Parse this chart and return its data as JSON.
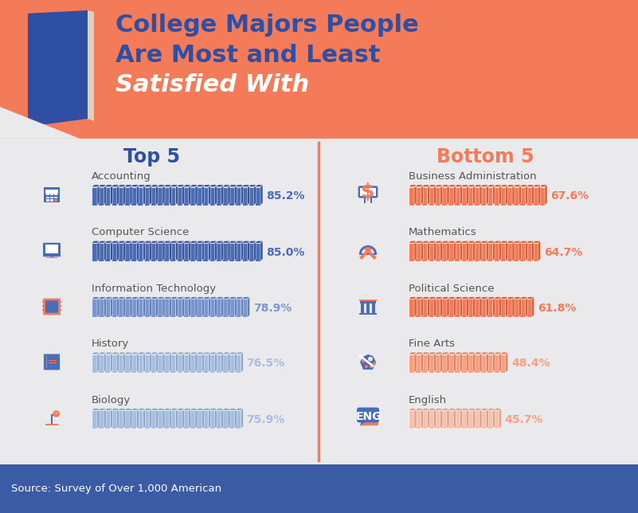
{
  "title_line1": "College Majors People",
  "title_line2": "Are Most and Least",
  "title_line3": "Satisfied With",
  "header_bg": "#F47B5A",
  "body_bg": "#EAEAED",
  "footer_bg": "#3B5BA5",
  "divider_color": "#F47B5A",
  "top5_label": "Top 5",
  "bottom5_label": "Bottom 5",
  "top5_dark_color": "#4B6CB7",
  "top5_dark_side": "#3A5494",
  "top5_mid_color": "#7B96CE",
  "top5_mid_side": "#6080B8",
  "top5_light_color": "#A8BEE0",
  "top5_light_side": "#8EA8CC",
  "bottom5_dark_color": "#F47B5A",
  "bottom5_dark_side": "#D4603A",
  "bottom5_mid_color": "#F7A080",
  "bottom5_mid_side": "#E08060",
  "bottom5_light_color": "#F9C0AA",
  "bottom5_light_side": "#E0A090",
  "top5_majors": [
    "Accounting",
    "Computer Science",
    "Information Technology",
    "History",
    "Biology"
  ],
  "top5_values": [
    85.2,
    85.0,
    78.9,
    76.5,
    75.9
  ],
  "top5_pct_colors": [
    "#4B6CB7",
    "#4B6CB7",
    "#7B96CE",
    "#A8BEE0",
    "#A8BEE0"
  ],
  "top5_bar_colors": [
    "#4B6CB7",
    "#4B6CB7",
    "#7B96CE",
    "#A8BEE0",
    "#A8BEE0"
  ],
  "top5_bar_sides": [
    "#3A5494",
    "#3A5494",
    "#6080B8",
    "#8EA8CC",
    "#8EA8CC"
  ],
  "bottom5_majors": [
    "Business Administration",
    "Mathematics",
    "Political Science",
    "Fine Arts",
    "English"
  ],
  "bottom5_values": [
    67.6,
    64.7,
    61.8,
    48.4,
    45.7
  ],
  "bottom5_pct_colors": [
    "#F47B5A",
    "#F47B5A",
    "#F47B5A",
    "#F7A080",
    "#F7A080"
  ],
  "bottom5_bar_colors": [
    "#F47B5A",
    "#F47B5A",
    "#F47B5A",
    "#F7A080",
    "#F9C0AA"
  ],
  "bottom5_bar_sides": [
    "#D4603A",
    "#D4603A",
    "#D4603A",
    "#E08060",
    "#E0A090"
  ],
  "source_text": "Source: Survey of Over 1,000 American",
  "title_blue": "#2E4FA3",
  "top5_title_color": "#2E4FA3",
  "bottom5_title_color": "#F47B5A",
  "label_color": "#555555",
  "max_books": 26,
  "max_val": 85.2
}
